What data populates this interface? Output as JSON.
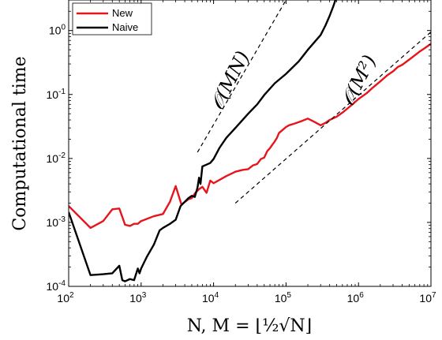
{
  "chart_data": {
    "type": "line",
    "x_scale": "log",
    "y_scale": "log",
    "xlim": [
      100,
      10000000
    ],
    "ylim": [
      0.0001,
      3
    ],
    "grid": false,
    "legend_position": "top-left",
    "xlabel": "N, M = ⌊½√N⌋",
    "ylabel": "Computational time",
    "x_ticks": [
      {
        "value": 100,
        "base": "10",
        "exp": "2"
      },
      {
        "value": 1000,
        "base": "10",
        "exp": "3"
      },
      {
        "value": 10000,
        "base": "10",
        "exp": "4"
      },
      {
        "value": 100000,
        "base": "10",
        "exp": "5"
      },
      {
        "value": 1000000,
        "base": "10",
        "exp": "6"
      },
      {
        "value": 10000000,
        "base": "10",
        "exp": "7"
      }
    ],
    "y_ticks": [
      {
        "value": 0.0001,
        "base": "10",
        "exp": "-4"
      },
      {
        "value": 0.001,
        "base": "10",
        "exp": "-3"
      },
      {
        "value": 0.01,
        "base": "10",
        "exp": "-2"
      },
      {
        "value": 0.1,
        "base": "10",
        "exp": "-1"
      },
      {
        "value": 1,
        "base": "10",
        "exp": "0"
      }
    ],
    "series": [
      {
        "name": "New",
        "color": "#e8141b",
        "points": [
          [
            100,
            0.0018
          ],
          [
            200,
            0.00082
          ],
          [
            300,
            0.00105
          ],
          [
            400,
            0.0016
          ],
          [
            500,
            0.00165
          ],
          [
            600,
            0.00092
          ],
          [
            700,
            0.00088
          ],
          [
            800,
            0.00095
          ],
          [
            900,
            0.00095
          ],
          [
            1000,
            0.00105
          ],
          [
            1500,
            0.00125
          ],
          [
            2000,
            0.00135
          ],
          [
            2500,
            0.0021
          ],
          [
            3000,
            0.0037
          ],
          [
            3600,
            0.0019
          ],
          [
            4500,
            0.0023
          ],
          [
            5000,
            0.0024
          ],
          [
            5600,
            0.0029
          ],
          [
            6300,
            0.0033
          ],
          [
            7000,
            0.0036
          ],
          [
            8000,
            0.0029
          ],
          [
            9000,
            0.0045
          ],
          [
            10000,
            0.0041
          ],
          [
            12000,
            0.0046
          ],
          [
            15000,
            0.0053
          ],
          [
            20000,
            0.0062
          ],
          [
            25000,
            0.0066
          ],
          [
            30000,
            0.0068
          ],
          [
            35000,
            0.0078
          ],
          [
            40000,
            0.0082
          ],
          [
            45000,
            0.0098
          ],
          [
            50000,
            0.0103
          ],
          [
            55000,
            0.013
          ],
          [
            60000,
            0.0145
          ],
          [
            65000,
            0.0165
          ],
          [
            70000,
            0.0185
          ],
          [
            75000,
            0.021
          ],
          [
            80000,
            0.025
          ],
          [
            90000,
            0.028
          ],
          [
            100000,
            0.031
          ],
          [
            110000,
            0.033
          ],
          [
            130000,
            0.035
          ],
          [
            160000,
            0.038
          ],
          [
            200000,
            0.042
          ],
          [
            250000,
            0.037
          ],
          [
            300000,
            0.033
          ],
          [
            350000,
            0.036
          ],
          [
            400000,
            0.04
          ],
          [
            500000,
            0.045
          ],
          [
            600000,
            0.052
          ],
          [
            700000,
            0.06
          ],
          [
            800000,
            0.068
          ],
          [
            1000000,
            0.085
          ],
          [
            1300000,
            0.105
          ],
          [
            1600000,
            0.13
          ],
          [
            2000000,
            0.16
          ],
          [
            2500000,
            0.2
          ],
          [
            3000000,
            0.23
          ],
          [
            3500000,
            0.27
          ],
          [
            4000000,
            0.29
          ],
          [
            5000000,
            0.35
          ],
          [
            6000000,
            0.41
          ],
          [
            7000000,
            0.47
          ],
          [
            8000000,
            0.52
          ],
          [
            10000000,
            0.62
          ]
        ]
      },
      {
        "name": "Naive",
        "color": "#000000",
        "points": [
          [
            100,
            0.00145
          ],
          [
            200,
            0.00015
          ],
          [
            300,
            0.000155
          ],
          [
            400,
            0.00016
          ],
          [
            500,
            0.00021
          ],
          [
            550,
            0.000125
          ],
          [
            600,
            0.00012
          ],
          [
            700,
            0.00013
          ],
          [
            800,
            0.000125
          ],
          [
            900,
            0.00019
          ],
          [
            950,
            0.00016
          ],
          [
            1000,
            0.00019
          ],
          [
            1200,
            0.00029
          ],
          [
            1500,
            0.00045
          ],
          [
            1800,
            0.00075
          ],
          [
            2000,
            0.00082
          ],
          [
            2500,
            0.00095
          ],
          [
            3000,
            0.0011
          ],
          [
            3500,
            0.0018
          ],
          [
            4000,
            0.0021
          ],
          [
            4500,
            0.0024
          ],
          [
            5000,
            0.0026
          ],
          [
            5500,
            0.0025
          ],
          [
            6000,
            0.0035
          ],
          [
            6300,
            0.005
          ],
          [
            6600,
            0.004
          ],
          [
            7000,
            0.0075
          ],
          [
            8000,
            0.008
          ],
          [
            9000,
            0.0085
          ],
          [
            10000,
            0.0098
          ],
          [
            12000,
            0.0145
          ],
          [
            15000,
            0.021
          ],
          [
            20000,
            0.03
          ],
          [
            30000,
            0.05
          ],
          [
            40000,
            0.07
          ],
          [
            50000,
            0.098
          ],
          [
            70000,
            0.15
          ],
          [
            100000,
            0.21
          ],
          [
            150000,
            0.33
          ],
          [
            200000,
            0.5
          ],
          [
            300000,
            0.85
          ],
          [
            350000,
            1.2
          ],
          [
            400000,
            1.7
          ],
          [
            450000,
            2.4
          ],
          [
            480000,
            3.0
          ]
        ]
      },
      {
        "name": "O(MN)",
        "color": "#000000",
        "dashed": true,
        "points": [
          [
            6000,
            0.0125
          ],
          [
            100000,
            3.0
          ]
        ]
      },
      {
        "name": "O(M^2)",
        "color": "#000000",
        "dashed": true,
        "points": [
          [
            20000,
            0.002
          ],
          [
            10000000,
            0.95
          ]
        ]
      }
    ],
    "legend": [
      {
        "label": "New",
        "color": "#e8141b"
      },
      {
        "label": "Naive",
        "color": "#000000"
      }
    ],
    "annotations": [
      {
        "text": "𝒪(MN)",
        "at": [
          20000,
          0.15
        ]
      },
      {
        "text": "𝒪(M²)",
        "at": [
          1200000,
          0.15
        ]
      }
    ]
  }
}
